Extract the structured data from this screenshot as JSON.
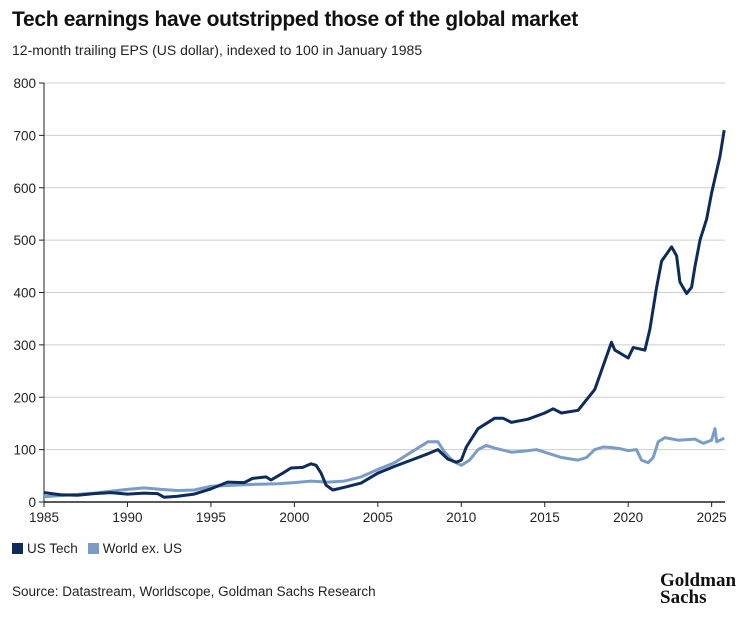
{
  "chart_data": {
    "type": "line",
    "title": "Tech earnings have outstripped those of the global market",
    "subtitle": "12-month trailing EPS (US dollar), indexed to 100 in January 1985",
    "xlim": [
      1985,
      2025.8
    ],
    "ylim": [
      0,
      800
    ],
    "x_ticks": [
      "1985",
      "1990",
      "1995",
      "2000",
      "2005",
      "2010",
      "2015",
      "2020",
      "2025"
    ],
    "y_ticks": [
      "0",
      "100",
      "200",
      "300",
      "400",
      "500",
      "600",
      "700",
      "800"
    ],
    "grid": "horizontal",
    "legend_placement": "bottom-left",
    "series": [
      {
        "name": "US Tech",
        "color": "#0d2b5b",
        "points": [
          [
            1985,
            18
          ],
          [
            1986,
            14
          ],
          [
            1987,
            13
          ],
          [
            1988,
            16
          ],
          [
            1989,
            18
          ],
          [
            1990,
            15
          ],
          [
            1991,
            17
          ],
          [
            1991.8,
            16
          ],
          [
            1992.2,
            9
          ],
          [
            1993,
            11
          ],
          [
            1994,
            15
          ],
          [
            1995,
            25
          ],
          [
            1996,
            38
          ],
          [
            1997,
            37
          ],
          [
            1997.5,
            45
          ],
          [
            1998.3,
            48
          ],
          [
            1998.6,
            42
          ],
          [
            1999.3,
            55
          ],
          [
            1999.8,
            65
          ],
          [
            2000.5,
            66
          ],
          [
            2001,
            73
          ],
          [
            2001.3,
            70
          ],
          [
            2001.6,
            55
          ],
          [
            2001.9,
            32
          ],
          [
            2002.3,
            23
          ],
          [
            2003,
            28
          ],
          [
            2004,
            36
          ],
          [
            2005,
            55
          ],
          [
            2006,
            68
          ],
          [
            2007,
            80
          ],
          [
            2008,
            92
          ],
          [
            2008.6,
            100
          ],
          [
            2009.2,
            82
          ],
          [
            2009.7,
            76
          ],
          [
            2010,
            80
          ],
          [
            2010.3,
            105
          ],
          [
            2011,
            140
          ],
          [
            2012,
            160
          ],
          [
            2012.5,
            160
          ],
          [
            2013,
            152
          ],
          [
            2014,
            158
          ],
          [
            2015,
            170
          ],
          [
            2015.5,
            178
          ],
          [
            2016,
            170
          ],
          [
            2017,
            175
          ],
          [
            2018,
            215
          ],
          [
            2018.5,
            260
          ],
          [
            2019,
            305
          ],
          [
            2019.2,
            290
          ],
          [
            2020,
            275
          ],
          [
            2020.3,
            295
          ],
          [
            2021,
            290
          ],
          [
            2021.3,
            330
          ],
          [
            2021.7,
            410
          ],
          [
            2022,
            460
          ],
          [
            2022.6,
            487
          ],
          [
            2022.9,
            470
          ],
          [
            2023.1,
            420
          ],
          [
            2023.5,
            398
          ],
          [
            2023.8,
            410
          ],
          [
            2024,
            450
          ],
          [
            2024.3,
            500
          ],
          [
            2024.7,
            540
          ],
          [
            2025,
            590
          ],
          [
            2025.5,
            660
          ],
          [
            2025.75,
            710
          ]
        ]
      },
      {
        "name": "World ex. US",
        "color": "#7a9cc6",
        "points": [
          [
            1985,
            10
          ],
          [
            1988,
            17
          ],
          [
            1990,
            24
          ],
          [
            1991,
            27
          ],
          [
            1992,
            24
          ],
          [
            1993,
            22
          ],
          [
            1994,
            23
          ],
          [
            1995,
            30
          ],
          [
            1997,
            33
          ],
          [
            1999,
            35
          ],
          [
            2000,
            37
          ],
          [
            2001,
            40
          ],
          [
            2002,
            38
          ],
          [
            2003,
            40
          ],
          [
            2004,
            48
          ],
          [
            2005,
            62
          ],
          [
            2006,
            75
          ],
          [
            2007,
            95
          ],
          [
            2008,
            115
          ],
          [
            2008.6,
            115
          ],
          [
            2009,
            95
          ],
          [
            2009.5,
            78
          ],
          [
            2010,
            70
          ],
          [
            2010.5,
            80
          ],
          [
            2011,
            100
          ],
          [
            2011.5,
            108
          ],
          [
            2012,
            103
          ],
          [
            2013,
            95
          ],
          [
            2014,
            98
          ],
          [
            2014.5,
            100
          ],
          [
            2015,
            95
          ],
          [
            2016,
            85
          ],
          [
            2017,
            80
          ],
          [
            2017.5,
            85
          ],
          [
            2018,
            100
          ],
          [
            2018.5,
            105
          ],
          [
            2019,
            104
          ],
          [
            2019.5,
            102
          ],
          [
            2020,
            98
          ],
          [
            2020.5,
            100
          ],
          [
            2020.8,
            80
          ],
          [
            2021.2,
            75
          ],
          [
            2021.5,
            85
          ],
          [
            2021.8,
            115
          ],
          [
            2022.2,
            123
          ],
          [
            2023,
            118
          ],
          [
            2024,
            120
          ],
          [
            2024.5,
            112
          ],
          [
            2025,
            118
          ],
          [
            2025.2,
            140
          ],
          [
            2025.3,
            115
          ],
          [
            2025.75,
            122
          ]
        ]
      }
    ]
  },
  "source": "Source: Datastream, Worldscope, Goldman Sachs Research",
  "logo": "Goldman Sachs"
}
